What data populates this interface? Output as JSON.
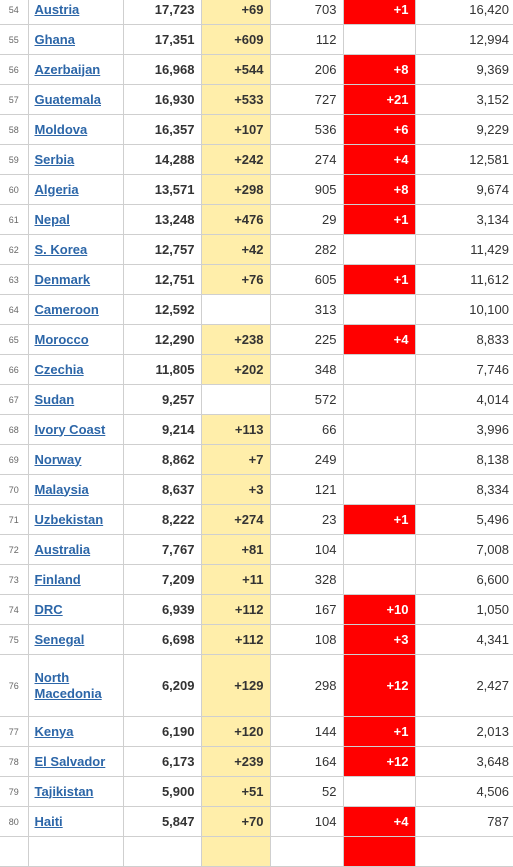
{
  "table": {
    "rows": [
      {
        "rank": "54",
        "country": "Austria",
        "cases": "17,723",
        "new_cases": "+69",
        "deaths": "703",
        "new_deaths": "+1",
        "recovered": "16,420"
      },
      {
        "rank": "55",
        "country": "Ghana",
        "cases": "17,351",
        "new_cases": "+609",
        "deaths": "112",
        "new_deaths": "",
        "recovered": "12,994"
      },
      {
        "rank": "56",
        "country": "Azerbaijan",
        "cases": "16,968",
        "new_cases": "+544",
        "deaths": "206",
        "new_deaths": "+8",
        "recovered": "9,369"
      },
      {
        "rank": "57",
        "country": "Guatemala",
        "cases": "16,930",
        "new_cases": "+533",
        "deaths": "727",
        "new_deaths": "+21",
        "recovered": "3,152"
      },
      {
        "rank": "58",
        "country": "Moldova",
        "cases": "16,357",
        "new_cases": "+107",
        "deaths": "536",
        "new_deaths": "+6",
        "recovered": "9,229"
      },
      {
        "rank": "59",
        "country": "Serbia",
        "cases": "14,288",
        "new_cases": "+242",
        "deaths": "274",
        "new_deaths": "+4",
        "recovered": "12,581"
      },
      {
        "rank": "60",
        "country": "Algeria",
        "cases": "13,571",
        "new_cases": "+298",
        "deaths": "905",
        "new_deaths": "+8",
        "recovered": "9,674"
      },
      {
        "rank": "61",
        "country": "Nepal",
        "cases": "13,248",
        "new_cases": "+476",
        "deaths": "29",
        "new_deaths": "+1",
        "recovered": "3,134"
      },
      {
        "rank": "62",
        "country": "S. Korea",
        "cases": "12,757",
        "new_cases": "+42",
        "deaths": "282",
        "new_deaths": "",
        "recovered": "11,429"
      },
      {
        "rank": "63",
        "country": "Denmark",
        "cases": "12,751",
        "new_cases": "+76",
        "deaths": "605",
        "new_deaths": "+1",
        "recovered": "11,612"
      },
      {
        "rank": "64",
        "country": "Cameroon",
        "cases": "12,592",
        "new_cases": "",
        "deaths": "313",
        "new_deaths": "",
        "recovered": "10,100"
      },
      {
        "rank": "65",
        "country": "Morocco",
        "cases": "12,290",
        "new_cases": "+238",
        "deaths": "225",
        "new_deaths": "+4",
        "recovered": "8,833"
      },
      {
        "rank": "66",
        "country": "Czechia",
        "cases": "11,805",
        "new_cases": "+202",
        "deaths": "348",
        "new_deaths": "",
        "recovered": "7,746"
      },
      {
        "rank": "67",
        "country": "Sudan",
        "cases": "9,257",
        "new_cases": "",
        "deaths": "572",
        "new_deaths": "",
        "recovered": "4,014"
      },
      {
        "rank": "68",
        "country": "Ivory Coast",
        "cases": "9,214",
        "new_cases": "+113",
        "deaths": "66",
        "new_deaths": "",
        "recovered": "3,996"
      },
      {
        "rank": "69",
        "country": "Norway",
        "cases": "8,862",
        "new_cases": "+7",
        "deaths": "249",
        "new_deaths": "",
        "recovered": "8,138"
      },
      {
        "rank": "70",
        "country": "Malaysia",
        "cases": "8,637",
        "new_cases": "+3",
        "deaths": "121",
        "new_deaths": "",
        "recovered": "8,334"
      },
      {
        "rank": "71",
        "country": "Uzbekistan",
        "cases": "8,222",
        "new_cases": "+274",
        "deaths": "23",
        "new_deaths": "+1",
        "recovered": "5,496"
      },
      {
        "rank": "72",
        "country": "Australia",
        "cases": "7,767",
        "new_cases": "+81",
        "deaths": "104",
        "new_deaths": "",
        "recovered": "7,008"
      },
      {
        "rank": "73",
        "country": "Finland",
        "cases": "7,209",
        "new_cases": "+11",
        "deaths": "328",
        "new_deaths": "",
        "recovered": "6,600"
      },
      {
        "rank": "74",
        "country": "DRC",
        "cases": "6,939",
        "new_cases": "+112",
        "deaths": "167",
        "new_deaths": "+10",
        "recovered": "1,050"
      },
      {
        "rank": "75",
        "country": "Senegal",
        "cases": "6,698",
        "new_cases": "+112",
        "deaths": "108",
        "new_deaths": "+3",
        "recovered": "4,341"
      },
      {
        "rank": "76",
        "country": "North Macedonia",
        "cases": "6,209",
        "new_cases": "+129",
        "deaths": "298",
        "new_deaths": "+12",
        "recovered": "2,427"
      },
      {
        "rank": "77",
        "country": "Kenya",
        "cases": "6,190",
        "new_cases": "+120",
        "deaths": "144",
        "new_deaths": "+1",
        "recovered": "2,013"
      },
      {
        "rank": "78",
        "country": "El Salvador",
        "cases": "6,173",
        "new_cases": "+239",
        "deaths": "164",
        "new_deaths": "+12",
        "recovered": "3,648"
      },
      {
        "rank": "79",
        "country": "Tajikistan",
        "cases": "5,900",
        "new_cases": "+51",
        "deaths": "52",
        "new_deaths": "",
        "recovered": "4,506"
      },
      {
        "rank": "80",
        "country": "Haiti",
        "cases": "5,847",
        "new_cases": "+70",
        "deaths": "104",
        "new_deaths": "+4",
        "recovered": "787"
      },
      {
        "rank": "",
        "country": "",
        "cases": "",
        "new_cases": "",
        "deaths": "",
        "new_deaths": "",
        "recovered": ""
      }
    ]
  },
  "colors": {
    "new_cases_bg": "#ffeeaa",
    "new_deaths_bg": "#ff0000",
    "country_link": "#2c66a8",
    "grid": "#cfcfcf"
  }
}
